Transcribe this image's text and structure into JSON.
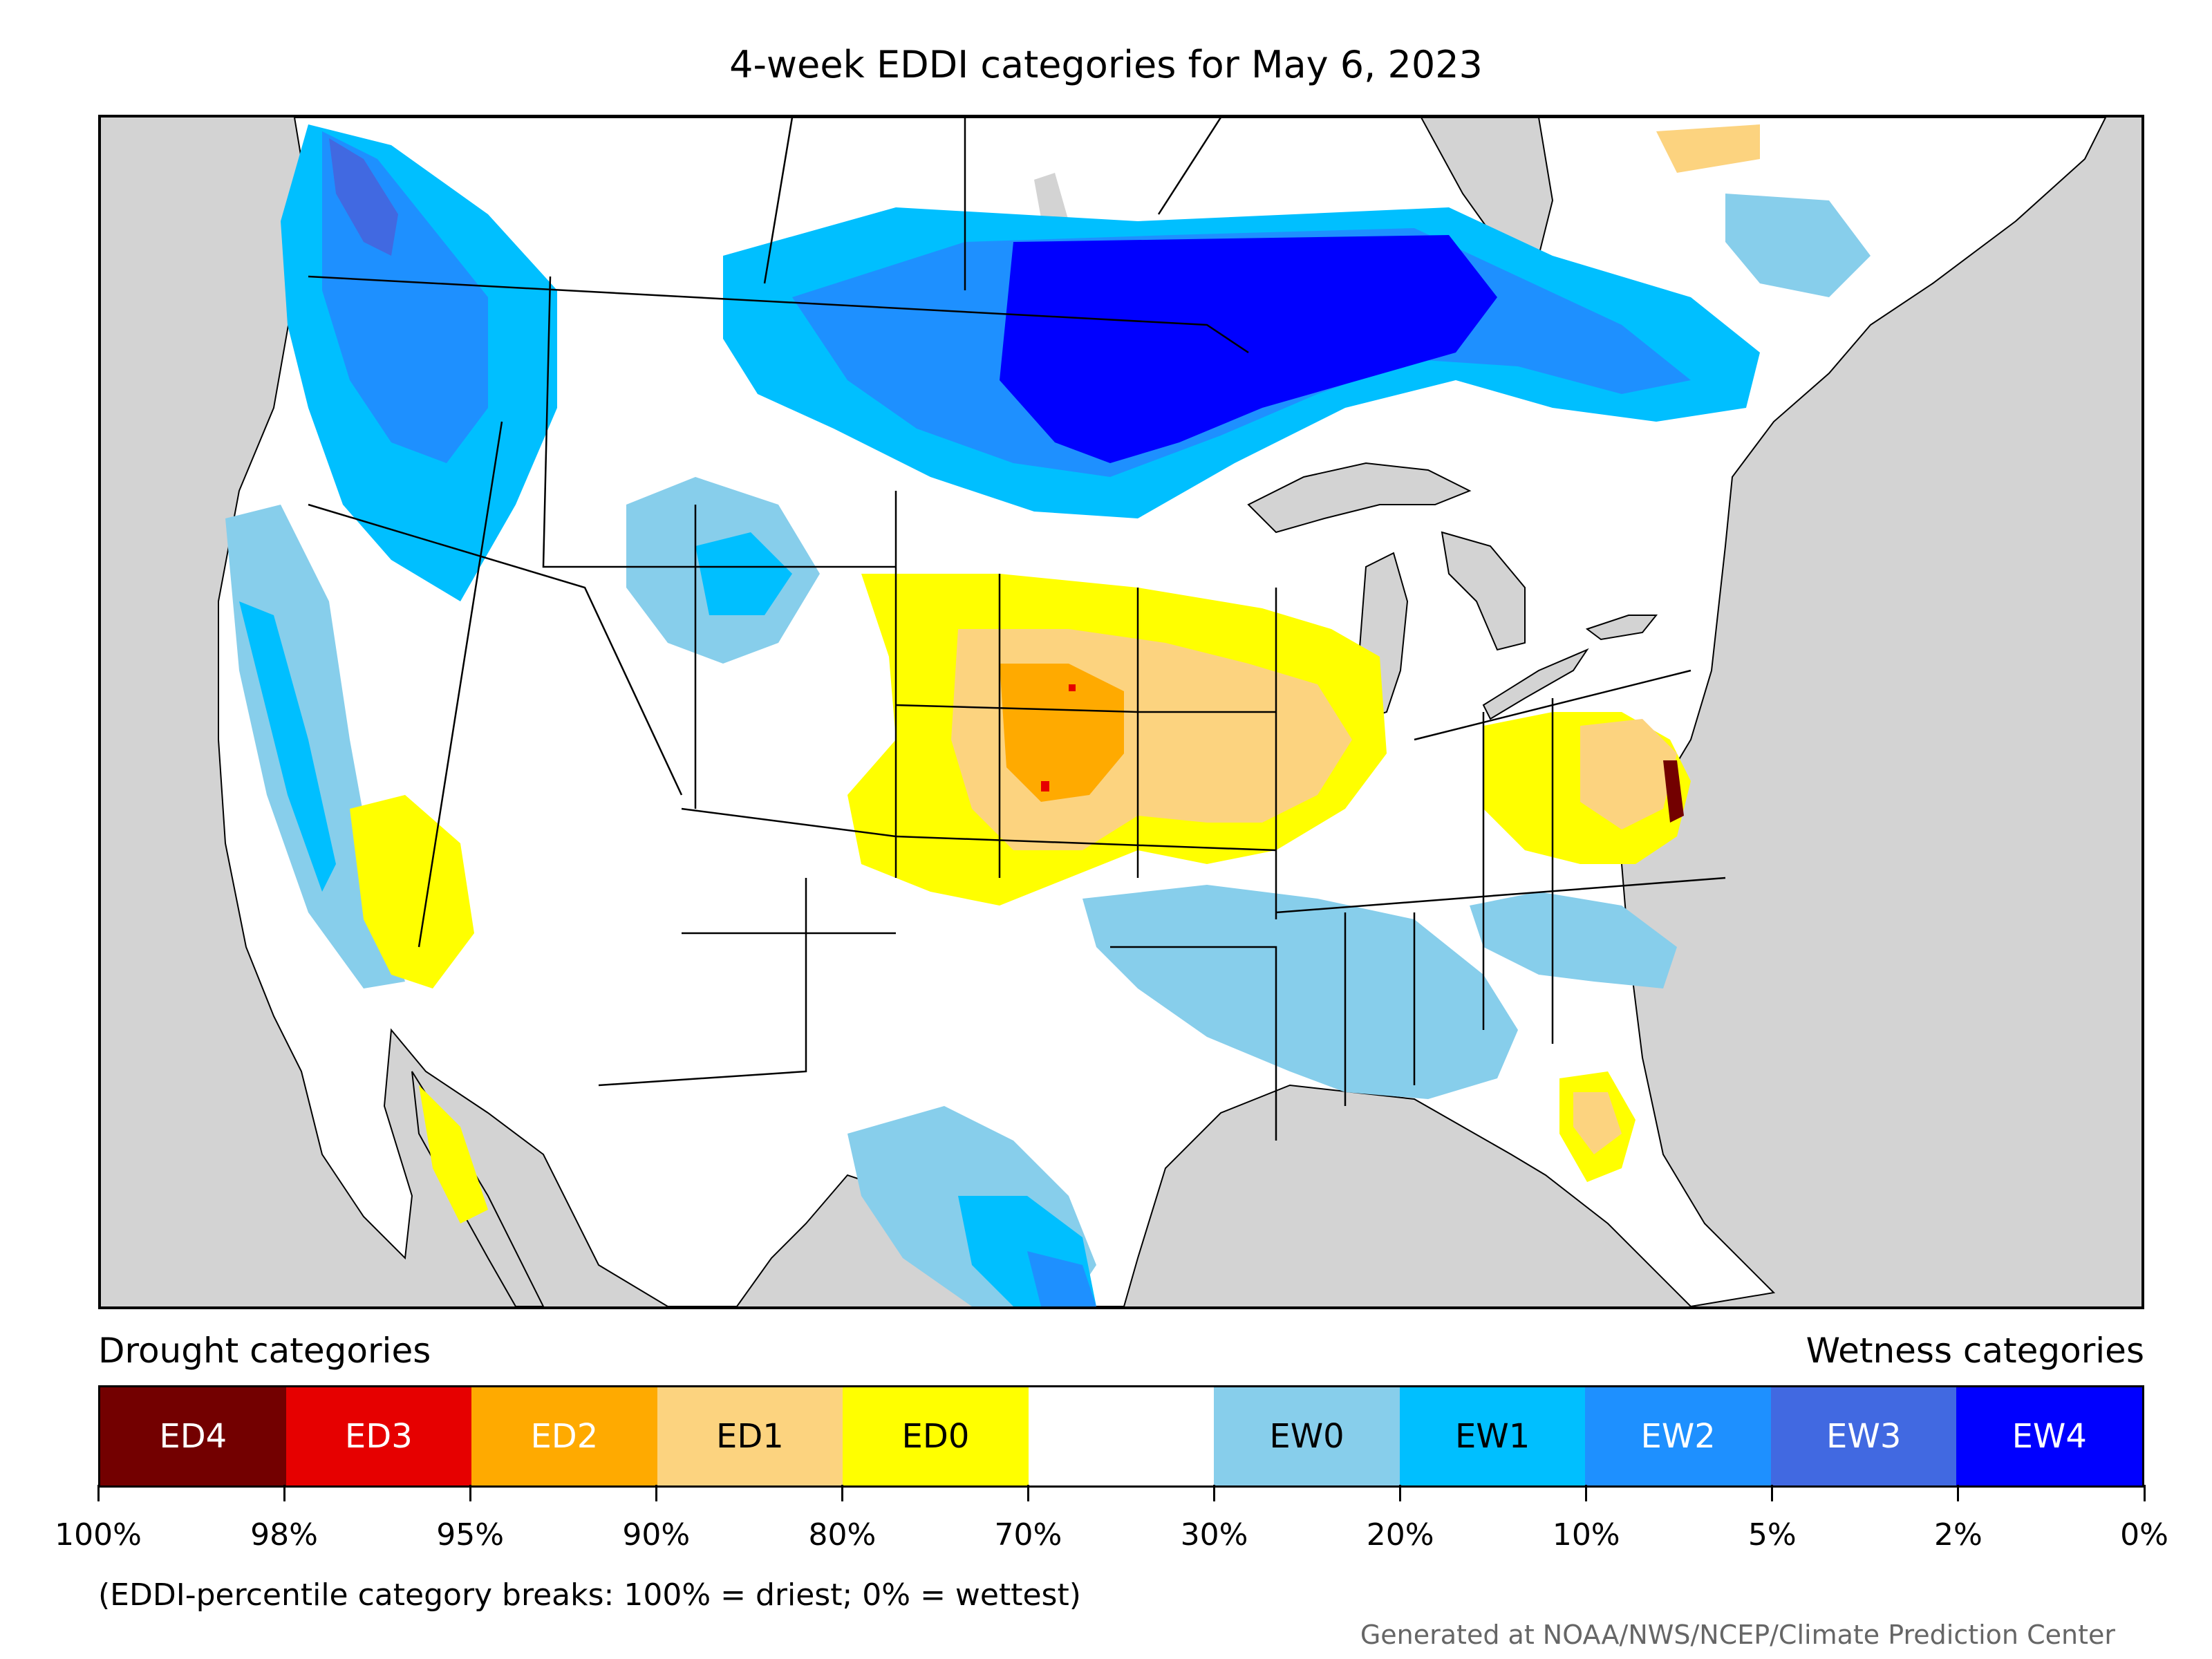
{
  "title": "4-week EDDI categories for May 6, 2023",
  "legend": {
    "drought_heading": "Drought categories",
    "wetness_heading": "Wetness categories",
    "categories": [
      {
        "label": "ED4",
        "color": "#730000",
        "text_color": "#ffffff"
      },
      {
        "label": "ED3",
        "color": "#e60000",
        "text_color": "#ffffff"
      },
      {
        "label": "ED2",
        "color": "#ffaa00",
        "text_color": "#ffffff"
      },
      {
        "label": "ED1",
        "color": "#fcd37f",
        "text_color": "#000000"
      },
      {
        "label": "ED0",
        "color": "#ffff00",
        "text_color": "#000000"
      },
      {
        "label": "",
        "color": "#ffffff",
        "text_color": "#000000"
      },
      {
        "label": "EW0",
        "color": "#87ceeb",
        "text_color": "#000000"
      },
      {
        "label": "EW1",
        "color": "#00bfff",
        "text_color": "#000000"
      },
      {
        "label": "EW2",
        "color": "#1e90ff",
        "text_color": "#ffffff"
      },
      {
        "label": "EW3",
        "color": "#4169e1",
        "text_color": "#ffffff"
      },
      {
        "label": "EW4",
        "color": "#0000ff",
        "text_color": "#ffffff"
      }
    ],
    "tick_labels": [
      "100%",
      "98%",
      "95%",
      "90%",
      "80%",
      "70%",
      "30%",
      "20%",
      "10%",
      "5%",
      "2%",
      "0%"
    ]
  },
  "note": "(EDDI-percentile category breaks: 100% = driest; 0% = wettest)",
  "credit": "Generated at NOAA/NWS/NCEP/Climate Prediction Center",
  "map_colors": {
    "background": "#d3d3d3",
    "land": "#ffffff",
    "borders": "#000000"
  }
}
